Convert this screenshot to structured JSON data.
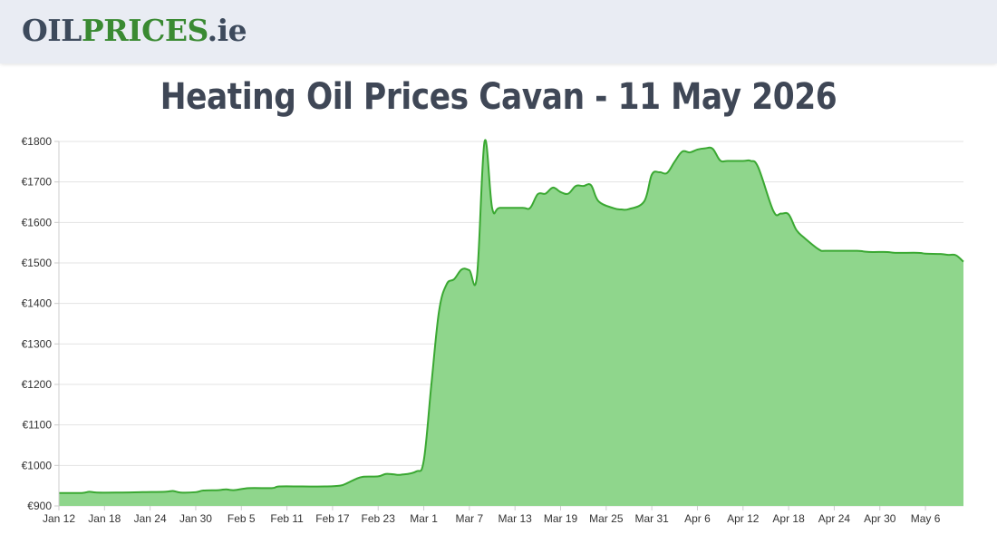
{
  "header": {
    "logo_oil": "OIL",
    "logo_prices": "PRICES",
    "logo_ie": ".ie"
  },
  "page": {
    "title": "Heating Oil Prices Cavan - 11 May 2026"
  },
  "colors": {
    "line": "#3aa832",
    "fill": "#8fd68c",
    "grid": "#e3e3e3",
    "header_bg": "#e9ecf3"
  },
  "chart_data": {
    "type": "area",
    "title": "Heating Oil Prices Cavan - 11 May 2026",
    "xlabel": "",
    "ylabel": "",
    "ylim": [
      900,
      1800
    ],
    "grid": true,
    "y_ticks": [
      "€900",
      "€1000",
      "€1100",
      "€1200",
      "€1300",
      "€1400",
      "€1500",
      "€1600",
      "€1700",
      "€1800"
    ],
    "x_ticks": [
      {
        "date": "2026-01-12",
        "label": "Jan 12"
      },
      {
        "date": "2026-01-18",
        "label": "Jan 18"
      },
      {
        "date": "2026-01-24",
        "label": "Jan 24"
      },
      {
        "date": "2026-01-30",
        "label": "Jan 30"
      },
      {
        "date": "2026-02-05",
        "label": "Feb 5"
      },
      {
        "date": "2026-02-11",
        "label": "Feb 11"
      },
      {
        "date": "2026-02-17",
        "label": "Feb 17"
      },
      {
        "date": "2026-02-23",
        "label": "Feb 23"
      },
      {
        "date": "2026-03-01",
        "label": "Mar 1"
      },
      {
        "date": "2026-03-07",
        "label": "Mar 7"
      },
      {
        "date": "2026-03-13",
        "label": "Mar 13"
      },
      {
        "date": "2026-03-19",
        "label": "Mar 19"
      },
      {
        "date": "2026-03-25",
        "label": "Mar 25"
      },
      {
        "date": "2026-03-31",
        "label": "Mar 31"
      },
      {
        "date": "2026-04-06",
        "label": "Apr 6"
      },
      {
        "date": "2026-04-12",
        "label": "Apr 12"
      },
      {
        "date": "2026-04-18",
        "label": "Apr 18"
      },
      {
        "date": "2026-04-24",
        "label": "Apr 24"
      },
      {
        "date": "2026-04-30",
        "label": "Apr 30"
      },
      {
        "date": "2026-05-06",
        "label": "May 6"
      }
    ],
    "series": [
      {
        "points": [
          [
            "2026-01-12",
            932
          ],
          [
            "2026-01-15",
            932
          ],
          [
            "2026-01-16",
            935
          ],
          [
            "2026-01-17",
            933
          ],
          [
            "2026-01-20",
            933
          ],
          [
            "2026-01-23",
            934
          ],
          [
            "2026-01-26",
            935
          ],
          [
            "2026-01-27",
            937
          ],
          [
            "2026-01-28",
            933
          ],
          [
            "2026-01-30",
            934
          ],
          [
            "2026-01-31",
            938
          ],
          [
            "2026-02-02",
            939
          ],
          [
            "2026-02-03",
            941
          ],
          [
            "2026-02-04",
            939
          ],
          [
            "2026-02-06",
            944
          ],
          [
            "2026-02-09",
            944
          ],
          [
            "2026-02-10",
            948
          ],
          [
            "2026-02-13",
            948
          ],
          [
            "2026-02-16",
            948
          ],
          [
            "2026-02-18",
            950
          ],
          [
            "2026-02-19",
            957
          ],
          [
            "2026-02-20",
            966
          ],
          [
            "2026-02-21",
            972
          ],
          [
            "2026-02-23",
            973
          ],
          [
            "2026-02-24",
            979
          ],
          [
            "2026-02-25",
            978
          ],
          [
            "2026-02-26",
            977
          ],
          [
            "2026-02-28",
            985
          ],
          [
            "2026-03-01",
            1012
          ],
          [
            "2026-03-02",
            1200
          ],
          [
            "2026-03-03",
            1380
          ],
          [
            "2026-03-04",
            1447
          ],
          [
            "2026-03-05",
            1460
          ],
          [
            "2026-03-06",
            1484
          ],
          [
            "2026-03-07",
            1482
          ],
          [
            "2026-03-08",
            1468
          ],
          [
            "2026-03-09",
            1800
          ],
          [
            "2026-03-10",
            1635
          ],
          [
            "2026-03-11",
            1636
          ],
          [
            "2026-03-14",
            1636
          ],
          [
            "2026-03-15",
            1636
          ],
          [
            "2026-03-16",
            1670
          ],
          [
            "2026-03-17",
            1671
          ],
          [
            "2026-03-18",
            1686
          ],
          [
            "2026-03-19",
            1675
          ],
          [
            "2026-03-20",
            1671
          ],
          [
            "2026-03-21",
            1690
          ],
          [
            "2026-03-22",
            1690
          ],
          [
            "2026-03-23",
            1692
          ],
          [
            "2026-03-24",
            1652
          ],
          [
            "2026-03-26",
            1635
          ],
          [
            "2026-03-27",
            1632
          ],
          [
            "2026-03-28",
            1633
          ],
          [
            "2026-03-30",
            1652
          ],
          [
            "2026-03-31",
            1718
          ],
          [
            "2026-04-01",
            1724
          ],
          [
            "2026-04-02",
            1722
          ],
          [
            "2026-04-03",
            1750
          ],
          [
            "2026-04-04",
            1775
          ],
          [
            "2026-04-05",
            1773
          ],
          [
            "2026-04-06",
            1780
          ],
          [
            "2026-04-07",
            1783
          ],
          [
            "2026-04-08",
            1782
          ],
          [
            "2026-04-09",
            1753
          ],
          [
            "2026-04-10",
            1752
          ],
          [
            "2026-04-12",
            1752
          ],
          [
            "2026-04-13",
            1752
          ],
          [
            "2026-04-14",
            1736
          ],
          [
            "2026-04-16",
            1628
          ],
          [
            "2026-04-17",
            1622
          ],
          [
            "2026-04-18",
            1620
          ],
          [
            "2026-04-19",
            1582
          ],
          [
            "2026-04-20",
            1563
          ],
          [
            "2026-04-22",
            1533
          ],
          [
            "2026-04-23",
            1530
          ],
          [
            "2026-04-27",
            1530
          ],
          [
            "2026-04-28",
            1528
          ],
          [
            "2026-04-29",
            1527
          ],
          [
            "2026-05-01",
            1527
          ],
          [
            "2026-05-02",
            1525
          ],
          [
            "2026-05-05",
            1525
          ],
          [
            "2026-05-06",
            1523
          ],
          [
            "2026-05-08",
            1522
          ],
          [
            "2026-05-09",
            1520
          ],
          [
            "2026-05-10",
            1519
          ],
          [
            "2026-05-11",
            1503
          ]
        ]
      }
    ]
  }
}
